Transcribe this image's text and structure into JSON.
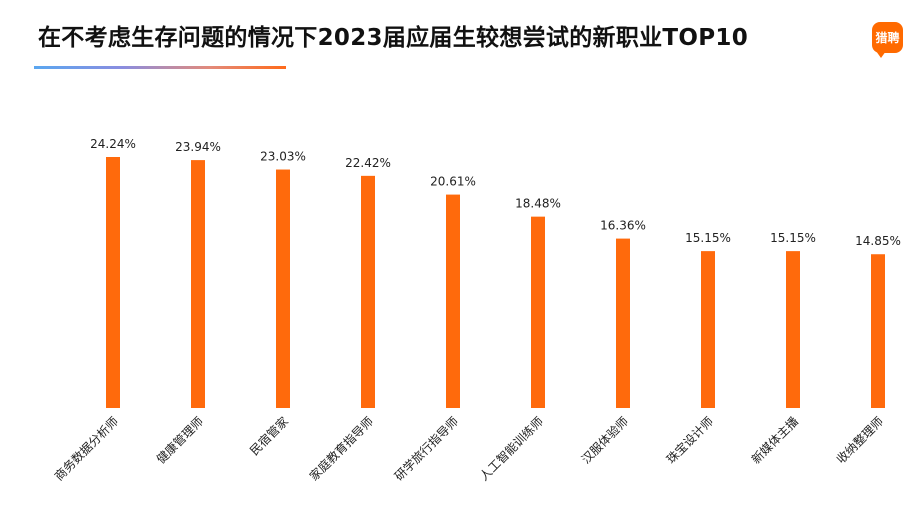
{
  "title": "在不考虑生存问题的情况下2023届应届生较想尝试的新职业TOP10",
  "logo_text": "猎聘",
  "colors": {
    "bar": "#ff6a0c",
    "accent": "#ff6a00"
  },
  "chart_data": {
    "type": "bar",
    "categories": [
      "商务数据分析师",
      "健康管理师",
      "民宿管家",
      "家庭教育指导师",
      "研学旅行指导师",
      "人工智能训练师",
      "汉服体验师",
      "珠宝设计师",
      "新媒体主播",
      "收纳整理师"
    ],
    "values": [
      24.24,
      23.94,
      23.03,
      22.42,
      20.61,
      18.48,
      16.36,
      15.15,
      15.15,
      14.85
    ],
    "labels": [
      "24.24%",
      "23.94%",
      "23.03%",
      "22.42%",
      "20.61%",
      "18.48%",
      "16.36%",
      "15.15%",
      "15.15%",
      "14.85%"
    ],
    "title": "",
    "xlabel": "",
    "ylabel": "",
    "ylim": [
      0,
      24.24
    ],
    "grid": false,
    "legend": "none"
  }
}
